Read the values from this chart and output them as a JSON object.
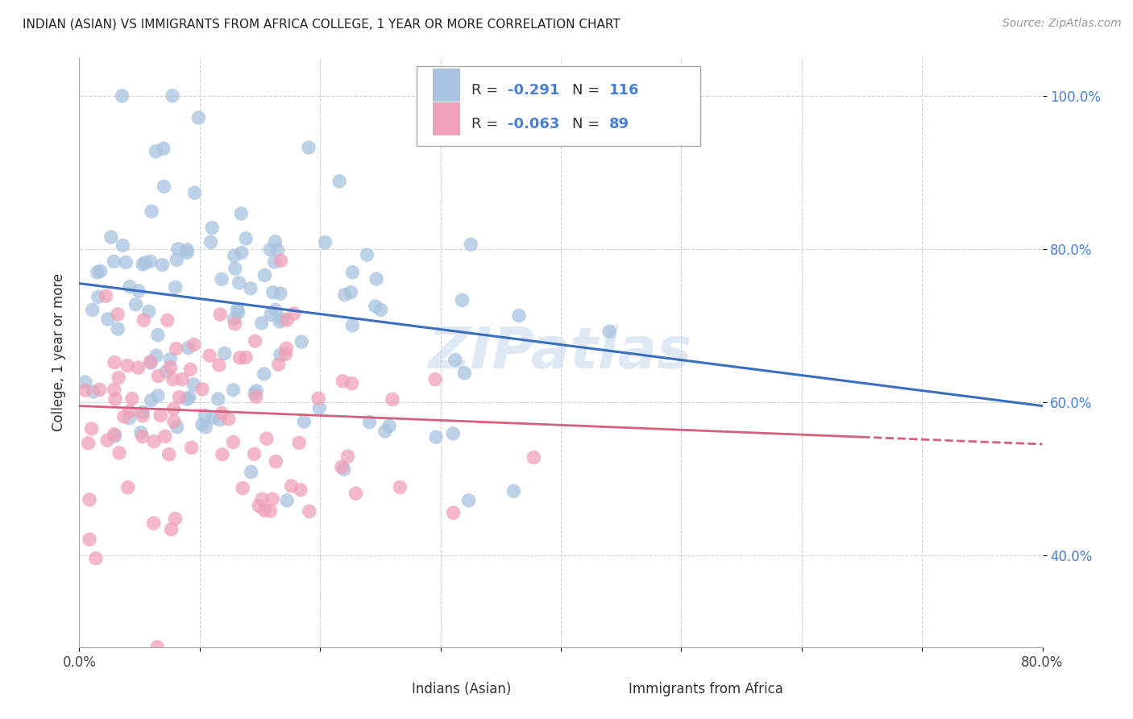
{
  "title": "INDIAN (ASIAN) VS IMMIGRANTS FROM AFRICA COLLEGE, 1 YEAR OR MORE CORRELATION CHART",
  "source": "Source: ZipAtlas.com",
  "ylabel": "College, 1 year or more",
  "blue_color": "#a8c4e0",
  "pink_color": "#f0a0b8",
  "trend_blue": "#3a6fbf",
  "trend_pink": "#d46080",
  "watermark": "ZIPatlas",
  "R1": -0.291,
  "N1": 116,
  "R2": -0.063,
  "N2": 89,
  "xmin": 0.0,
  "xmax": 0.8,
  "ymin": 0.28,
  "ymax": 1.05,
  "ytick_labels": [
    "40.0%",
    "60.0%",
    "80.0%",
    "100.0%"
  ],
  "ytick_vals": [
    0.4,
    0.6,
    0.8,
    1.0
  ],
  "xtick_vals": [
    0.0,
    0.1,
    0.2,
    0.3,
    0.4,
    0.5,
    0.6,
    0.7,
    0.8
  ],
  "blue_trend_start_y": 0.755,
  "blue_trend_end_y": 0.595,
  "pink_trend_start_y": 0.595,
  "pink_trend_end_y": 0.545
}
